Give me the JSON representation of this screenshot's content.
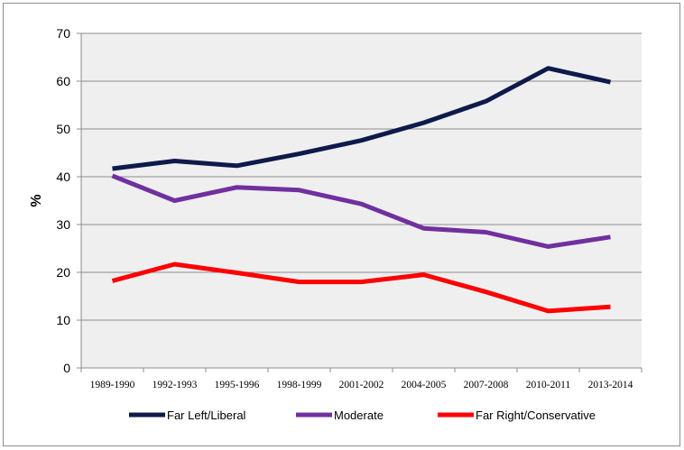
{
  "chart_data": {
    "type": "line",
    "title": "",
    "xlabel": "",
    "ylabel": "%",
    "ylim": [
      0,
      70
    ],
    "y_ticks": [
      "0",
      "10",
      "20",
      "30",
      "40",
      "50",
      "60",
      "70"
    ],
    "categories": [
      "1989-1990",
      "1992-1993",
      "1995-1996",
      "1998-1999",
      "2001-2002",
      "2004-2005",
      "2007-2008",
      "2010-2011",
      "2013-2014"
    ],
    "grid": true,
    "legend_position": "bottom",
    "series": [
      {
        "name": "Far Left/Liberal",
        "color": "#0e1a4a",
        "values": [
          41.7,
          43.3,
          42.3,
          44.8,
          47.6,
          51.3,
          55.8,
          62.7,
          59.8
        ]
      },
      {
        "name": "Moderate",
        "color": "#7030a0",
        "values": [
          40.2,
          35.0,
          37.8,
          37.2,
          34.3,
          29.2,
          28.4,
          25.4,
          27.4
        ]
      },
      {
        "name": "Far Right/Conservative",
        "color": "#ff0000",
        "values": [
          18.2,
          21.7,
          19.9,
          18.0,
          18.0,
          19.5,
          15.9,
          11.9,
          12.8
        ]
      }
    ]
  },
  "colors": {
    "plot_background": "#efefef",
    "grid": "#8c8c8c"
  }
}
